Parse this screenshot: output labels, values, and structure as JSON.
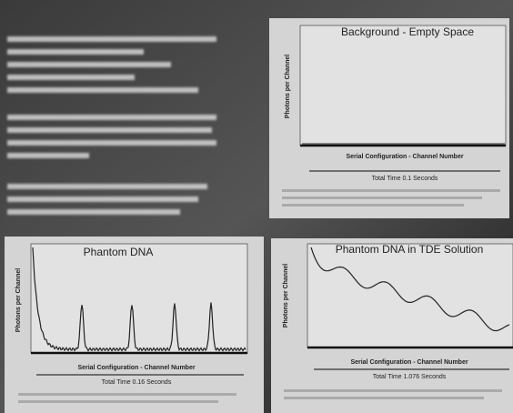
{
  "panels": [
    {
      "title": "Background - Empty Space",
      "x_label": "Serial Configuration - Channel Number",
      "y_label": "Photons per Channel",
      "subtitle": "Total Time 0.1 Seconds"
    },
    {
      "title": "Phantom DNA",
      "x_label": "Serial Configuration - Channel Number",
      "y_label": "Photons per Channel",
      "subtitle": "Total Time 0.16 Seconds"
    },
    {
      "title": "Phantom DNA in TDE Solution",
      "x_label": "Serial Configuration - Channel Number",
      "y_label": "Photons per Channel",
      "subtitle": "Total Time 1.076 Seconds"
    }
  ]
}
